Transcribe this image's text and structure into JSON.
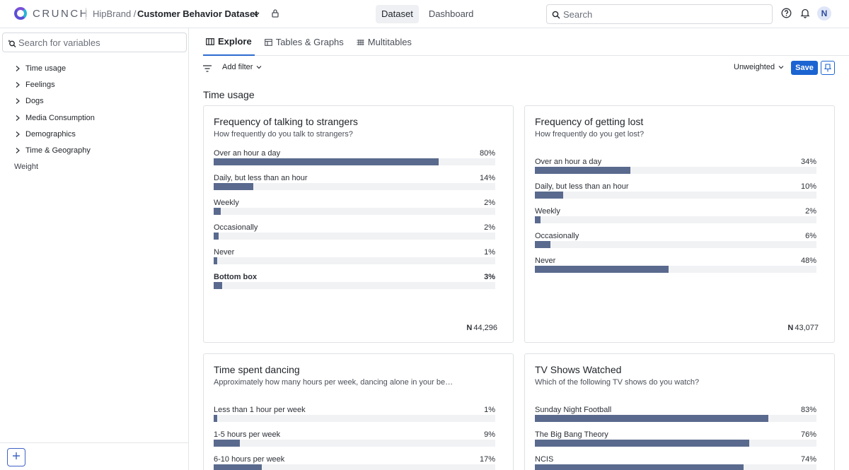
{
  "app": {
    "logo": "CRUNCH"
  },
  "breadcrumb": {
    "parent": "HipBrand /",
    "current": "Customer Behavior Dataset"
  },
  "topnav": [
    {
      "label": "Dataset",
      "active": true
    },
    {
      "label": "Dashboard",
      "active": false
    }
  ],
  "search": {
    "placeholder": "Search",
    "value": ""
  },
  "user": {
    "initial": "N"
  },
  "sidebar": {
    "search_placeholder": "Search for variables",
    "items": [
      {
        "label": "Time usage"
      },
      {
        "label": "Feelings"
      },
      {
        "label": "Dogs"
      },
      {
        "label": "Media Consumption"
      },
      {
        "label": "Demographics"
      },
      {
        "label": "Time & Geography"
      }
    ],
    "leaf": "Weight"
  },
  "tabs": [
    {
      "label": "Explore",
      "icon": "explore-icon",
      "active": true
    },
    {
      "label": "Tables & Graphs",
      "icon": "table-icon",
      "active": false
    },
    {
      "label": "Multitables",
      "icon": "multitable-icon",
      "active": false
    }
  ],
  "filterbar": {
    "add_filter": "Add filter",
    "weighting": "Unweighted",
    "save": "Save"
  },
  "section": {
    "title": "Time usage"
  },
  "colors": {
    "bar": "#5a6a8e",
    "accent": "#1b64d1",
    "track": "#f1f2f4"
  },
  "cards": [
    {
      "title": "Frequency of talking to strangers",
      "subtitle": "How frequently do you talk to strangers?",
      "n_label": "N",
      "n_value": "44,296",
      "rows": [
        {
          "label": "Over an hour a day",
          "pct_text": "80%",
          "value": 80
        },
        {
          "label": "Daily, but less than an hour",
          "pct_text": "14%",
          "value": 14
        },
        {
          "label": "Weekly",
          "pct_text": "2%",
          "value": 2.5
        },
        {
          "label": "Occasionally",
          "pct_text": "2%",
          "value": 1.7
        },
        {
          "label": "Never",
          "pct_text": "1%",
          "value": 1.2
        },
        {
          "label": "Bottom box",
          "pct_text": "3%",
          "value": 3,
          "bold": true
        }
      ]
    },
    {
      "title": "Frequency of getting lost",
      "subtitle": "How frequently do you get lost?",
      "n_label": "N",
      "n_value": "43,077",
      "rows": [
        {
          "label": "Over an hour a day",
          "pct_text": "34%",
          "value": 34
        },
        {
          "label": "Daily, but less than an hour",
          "pct_text": "10%",
          "value": 10
        },
        {
          "label": "Weekly",
          "pct_text": "2%",
          "value": 2
        },
        {
          "label": "Occasionally",
          "pct_text": "6%",
          "value": 5.5
        },
        {
          "label": "Never",
          "pct_text": "48%",
          "value": 47.5
        }
      ]
    },
    {
      "title": "Time spent dancing",
      "subtitle": "Approximately how many hours per week, dancing alone in your bedr...",
      "rows": [
        {
          "label": "Less than 1 hour per week",
          "pct_text": "1%",
          "value": 1.2
        },
        {
          "label": "1-5 hours per week",
          "pct_text": "9%",
          "value": 9.3
        },
        {
          "label": "6-10 hours per week",
          "pct_text": "17%",
          "value": 17
        }
      ]
    },
    {
      "title": "TV Shows Watched",
      "subtitle": "Which of the following TV shows do you watch?",
      "rows": [
        {
          "label": "Sunday Night Football",
          "pct_text": "83%",
          "value": 83
        },
        {
          "label": "The Big Bang Theory",
          "pct_text": "76%",
          "value": 76
        },
        {
          "label": "NCIS",
          "pct_text": "74%",
          "value": 74
        }
      ]
    }
  ]
}
